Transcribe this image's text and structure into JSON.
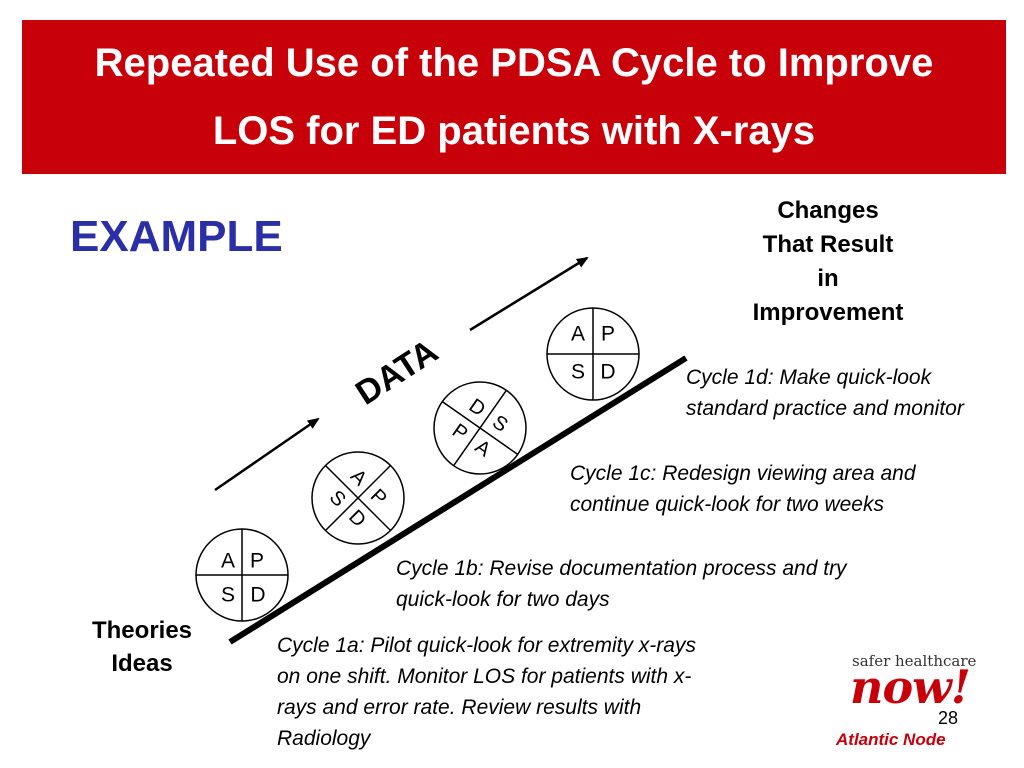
{
  "header": {
    "title_line1": "Repeated Use of the PDSA Cycle to Improve",
    "title_line2": "LOS for ED patients with X-rays",
    "background_color": "#c8000a"
  },
  "example_label": "EXAMPLE",
  "data_label": "DATA",
  "top_label": {
    "lines": [
      "Changes",
      "That Result",
      "in",
      "Improvement"
    ]
  },
  "bottom_label": {
    "lines": [
      "Theories",
      "Ideas"
    ]
  },
  "pdsa_wheels": [
    {
      "id": "wheel-1",
      "letters": [
        "A",
        "P",
        "S",
        "D"
      ]
    },
    {
      "id": "wheel-2",
      "letters": [
        "A",
        "P",
        "S",
        "D"
      ]
    },
    {
      "id": "wheel-3",
      "letters": [
        "D",
        "S",
        "P",
        "A"
      ]
    },
    {
      "id": "wheel-4",
      "letters": [
        "A",
        "P",
        "S",
        "D"
      ]
    }
  ],
  "cycles": {
    "c1d": [
      "Cycle 1d: Make quick-look",
      "standard practice and monitor"
    ],
    "c1c": [
      "Cycle 1c: Redesign viewing area and",
      "continue quick-look for two weeks"
    ],
    "c1b": [
      "Cycle 1b: Revise documentation process and try",
      "quick-look for two days"
    ],
    "c1a": [
      "Cycle 1a: Pilot quick-look for extremity x-rays",
      "on one shift. Monitor LOS for patients with x-",
      "rays and error rate. Review results with",
      "Radiology"
    ]
  },
  "logo": {
    "tagline": "safer healthcare",
    "word": "now!",
    "node": "Atlantic Node"
  },
  "slide_number": "28"
}
